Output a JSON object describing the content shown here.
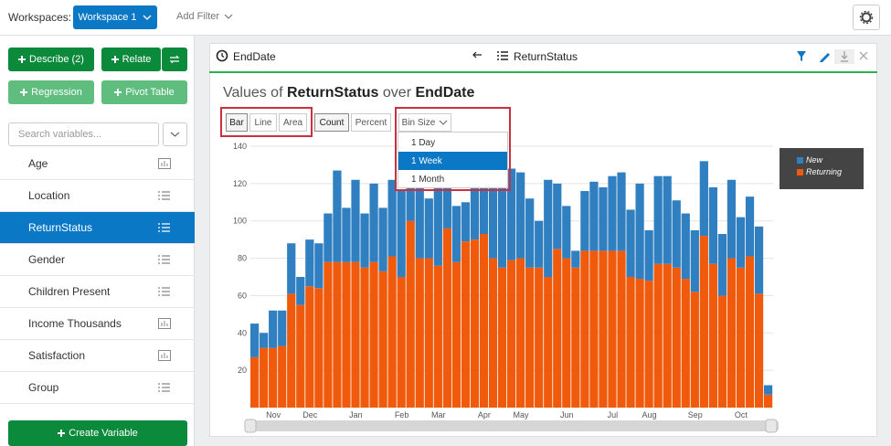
{
  "topbar": {
    "workspaces_label": "Workspaces:",
    "workspace": "Workspace 1",
    "add_filter": "Add Filter"
  },
  "sidebar": {
    "describe": "Describe (2)",
    "relate": "Relate",
    "regression": "Regression",
    "pivot_table": "Pivot Table",
    "search_placeholder": "Search variables...",
    "variables": [
      "Age",
      "Location",
      "ReturnStatus",
      "Gender",
      "Children Present",
      "Income Thousands",
      "Satisfaction",
      "Group"
    ],
    "create_variable": "Create Variable"
  },
  "panel": {
    "x_variable": "EndDate",
    "y_variable": "ReturnStatus",
    "title_parts": [
      "Values of",
      "ReturnStatus",
      "over",
      "EndDate"
    ],
    "chart_types": [
      "Bar",
      "Line",
      "Area"
    ],
    "modes": [
      "Count",
      "Percent"
    ],
    "bin_size": "Bin Size",
    "bin_options": [
      "1 Day",
      "1 Week",
      "1 Month"
    ]
  },
  "chart_data": {
    "type": "stacked-bar",
    "categories": [
      null,
      null,
      "Nov",
      null,
      null,
      null,
      "Dec",
      null,
      null,
      null,
      null,
      "Jan",
      null,
      null,
      null,
      null,
      "Feb",
      null,
      null,
      null,
      "Mar",
      null,
      null,
      null,
      null,
      "Apr",
      null,
      null,
      null,
      "May",
      null,
      null,
      null,
      null,
      "Jun",
      null,
      null,
      null,
      null,
      "Jul",
      null,
      null,
      null,
      "Aug",
      null,
      null,
      null,
      null,
      "Sep",
      null,
      null,
      null,
      null,
      "Oct",
      null,
      null,
      null
    ],
    "series": [
      {
        "name": "New",
        "color": "#2f7fc1",
        "values": [
          18,
          8,
          20,
          19,
          27,
          15,
          25,
          24,
          26,
          49,
          29,
          44,
          29,
          42,
          34,
          41,
          46,
          26,
          44,
          32,
          48,
          32,
          30,
          21,
          30,
          25,
          42,
          50,
          49,
          46,
          37,
          25,
          52,
          35,
          28,
          9,
          32,
          37,
          34,
          40,
          42,
          36,
          51,
          27,
          47,
          47,
          36,
          35,
          33,
          40,
          41,
          33,
          42,
          27,
          32,
          36,
          5
        ]
      },
      {
        "name": "Returning",
        "color": "#f05a0c",
        "values": [
          27,
          32,
          32,
          33,
          61,
          55,
          65,
          64,
          78,
          78,
          78,
          78,
          75,
          78,
          73,
          81,
          70,
          100,
          80,
          80,
          76,
          96,
          78,
          89,
          90,
          93,
          80,
          75,
          79,
          80,
          75,
          75,
          70,
          85,
          80,
          75,
          84,
          84,
          84,
          84,
          84,
          70,
          69,
          68,
          77,
          77,
          75,
          69,
          62,
          92,
          77,
          60,
          80,
          75,
          81,
          61,
          7
        ]
      }
    ],
    "ylim": [
      0,
      140
    ],
    "yticks": [
      20,
      40,
      60,
      80,
      100,
      120,
      140
    ],
    "grid": true
  }
}
